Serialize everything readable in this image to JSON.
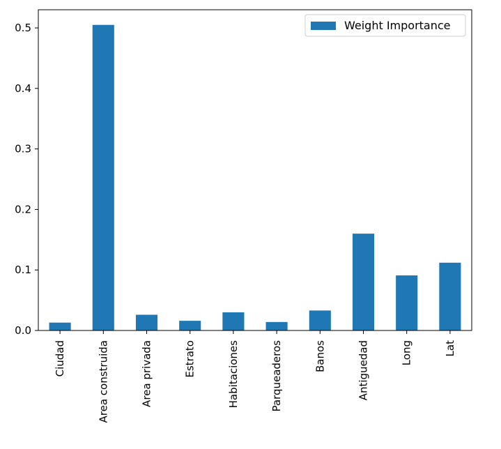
{
  "chart_data": {
    "type": "bar",
    "categories": [
      "Ciudad",
      "Area construida",
      "Area privada",
      "Estrato",
      "Habitaciones",
      "Parqueaderos",
      "Banos",
      "Antiguedad",
      "Long",
      "Lat"
    ],
    "series": [
      {
        "name": "Weight Importance",
        "color": "#1f77b4",
        "values": [
          0.013,
          0.505,
          0.026,
          0.016,
          0.03,
          0.014,
          0.033,
          0.16,
          0.091,
          0.112
        ]
      }
    ],
    "title": "",
    "xlabel": "",
    "ylabel": "",
    "ylim": [
      0,
      0.53
    ],
    "yticks": [
      "0.0",
      "0.1",
      "0.2",
      "0.3",
      "0.4",
      "0.5"
    ],
    "grid": false,
    "legend_position": "top-right"
  }
}
